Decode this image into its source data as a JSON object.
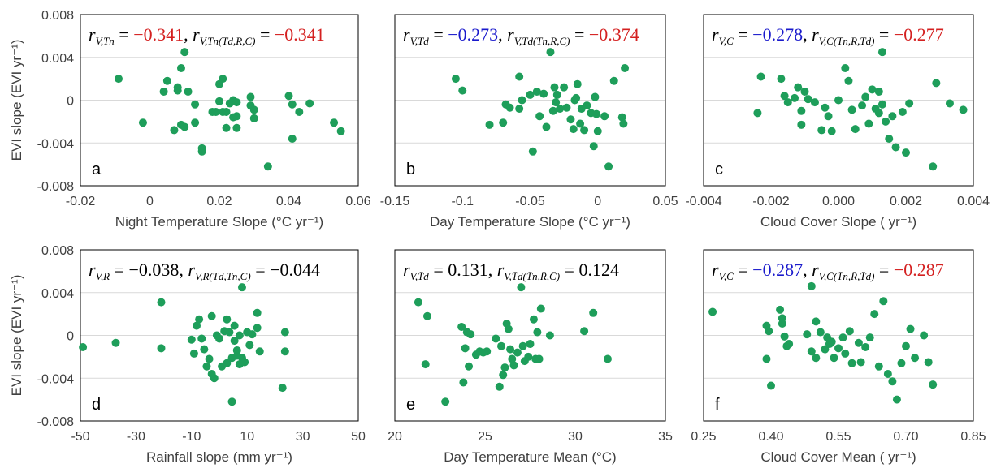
{
  "marker_color": "#1e9e5a",
  "colors": {
    "red": "#d42020",
    "blue": "#1a1acc",
    "black": "#000000"
  },
  "chart_data": [
    {
      "type": "scatter",
      "panel_label": "a",
      "xlabel": "Night Temperature Slope (°C yr⁻¹)",
      "ylabel": "EVI slope (EVI yr⁻¹)",
      "xlim": [
        -0.02,
        0.06
      ],
      "ylim": [
        -0.008,
        0.008
      ],
      "xticks": [
        "-0.02",
        "0",
        "0.02",
        "0.04",
        "0.06"
      ],
      "yticks": [
        "0.008",
        "0.004",
        "0",
        "-0.004",
        "-0.008"
      ],
      "annotation": [
        {
          "main": "r",
          "sub": "V,Tn",
          "eq": " = ",
          "val": "−0.341",
          "color": "red"
        },
        {
          "main": "r",
          "sub": "V,Tn(Td,R,C)",
          "eq": " = ",
          "val": "−0.341",
          "color": "red"
        }
      ],
      "x": [
        -0.009,
        -0.002,
        0.004,
        0.005,
        0.007,
        0.008,
        0.008,
        0.009,
        0.009,
        0.01,
        0.01,
        0.011,
        0.013,
        0.013,
        0.015,
        0.015,
        0.018,
        0.019,
        0.02,
        0.02,
        0.021,
        0.021,
        0.022,
        0.022,
        0.023,
        0.024,
        0.024,
        0.025,
        0.025,
        0.025,
        0.029,
        0.029,
        0.03,
        0.03,
        0.034,
        0.04,
        0.041,
        0.041,
        0.043,
        0.046,
        0.053,
        0.055
      ],
      "y": [
        0.002,
        -0.0021,
        0.0008,
        0.0018,
        -0.0028,
        0.0012,
        0.0009,
        -0.0023,
        0.003,
        0.0045,
        -0.0025,
        0.0008,
        -0.0021,
        -0.0004,
        -0.0048,
        -0.0045,
        -0.0011,
        -0.0011,
        -0.0001,
        0.0015,
        0.002,
        -0.0011,
        -0.0026,
        -0.0011,
        -0.0003,
        -0.0016,
        0.0,
        -0.0026,
        -0.0002,
        -0.0015,
        0.0003,
        -0.0005,
        -0.0009,
        -0.0017,
        -0.0062,
        0.0004,
        -0.0004,
        -0.0036,
        -0.0011,
        -0.0003,
        -0.0021,
        -0.0029
      ]
    },
    {
      "type": "scatter",
      "panel_label": "b",
      "xlabel": "Day Temperature Slope (°C yr⁻¹)",
      "ylabel": "",
      "xlim": [
        -0.15,
        0.05
      ],
      "ylim": [
        -0.008,
        0.008
      ],
      "xticks": [
        "-0.15",
        "-0.1",
        "-0.05",
        "0",
        "0.05"
      ],
      "yticks": [],
      "annotation": [
        {
          "main": "r",
          "sub": "V,Td",
          "eq": " = ",
          "val": "−0.273",
          "color": "blue"
        },
        {
          "main": "r",
          "sub": "V,Td(Tn,R,C)",
          "eq": " = ",
          "val": "−0.374",
          "color": "red"
        }
      ],
      "x": [
        -0.105,
        -0.1,
        -0.08,
        -0.07,
        -0.068,
        -0.065,
        -0.058,
        -0.058,
        -0.056,
        -0.05,
        -0.048,
        -0.045,
        -0.043,
        -0.04,
        -0.038,
        -0.035,
        -0.033,
        -0.032,
        -0.031,
        -0.03,
        -0.028,
        -0.025,
        -0.023,
        -0.02,
        -0.018,
        -0.017,
        -0.016,
        -0.015,
        -0.013,
        -0.012,
        -0.01,
        -0.008,
        -0.005,
        -0.003,
        -0.002,
        -0.001,
        0.0,
        0.005,
        0.008,
        0.012,
        0.018,
        0.019,
        0.02
      ],
      "y": [
        0.002,
        0.0009,
        -0.0023,
        -0.0021,
        -0.0004,
        -0.0007,
        0.0022,
        -0.0008,
        0.0,
        0.0005,
        -0.0048,
        0.0008,
        -0.0015,
        0.0006,
        -0.0025,
        0.0045,
        -0.001,
        0.0012,
        -0.0002,
        0.0005,
        -0.0008,
        0.0012,
        -0.0007,
        -0.0018,
        -0.0027,
        0.0,
        0.0002,
        0.0015,
        -0.0022,
        -0.0008,
        -0.0028,
        -0.0005,
        -0.0012,
        -0.0043,
        0.0003,
        -0.0013,
        -0.0029,
        -0.0015,
        -0.0062,
        0.0018,
        -0.0016,
        -0.0022,
        0.003
      ]
    },
    {
      "type": "scatter",
      "panel_label": "c",
      "xlabel": "Cloud Cover Slope ( yr⁻¹)",
      "ylabel": "",
      "xlim": [
        -0.004,
        0.004
      ],
      "ylim": [
        -0.008,
        0.008
      ],
      "xticks": [
        "-0.004",
        "-0.002",
        "0.000",
        "0.002",
        "0.004"
      ],
      "yticks": [],
      "annotation": [
        {
          "main": "r",
          "sub": "V,C",
          "eq": " = ",
          "val": "−0.278",
          "color": "blue"
        },
        {
          "main": "r",
          "sub": "V,C(Tn,R,Td)",
          "eq": " = ",
          "val": "−0.277",
          "color": "red"
        }
      ],
      "x": [
        -0.0024,
        -0.0023,
        -0.0017,
        -0.0016,
        -0.0015,
        -0.0013,
        -0.0012,
        -0.0011,
        -0.0011,
        -0.001,
        -0.0009,
        -0.0007,
        -0.0005,
        -0.0004,
        -0.0003,
        -0.0002,
        0.0,
        0.0002,
        0.0003,
        0.0004,
        0.0005,
        0.0007,
        0.0008,
        0.0009,
        0.001,
        0.0011,
        0.0012,
        0.0012,
        0.0013,
        0.0013,
        0.0014,
        0.0015,
        0.0016,
        0.0017,
        0.0019,
        0.002,
        0.0021,
        0.0028,
        0.0029,
        0.0033,
        0.0037
      ],
      "y": [
        -0.0012,
        0.0022,
        0.002,
        0.0004,
        -0.0002,
        0.0002,
        0.0012,
        -0.001,
        -0.0023,
        0.0008,
        0.0001,
        -0.0002,
        -0.0028,
        -0.0007,
        -0.0015,
        -0.0029,
        0.0,
        0.003,
        0.0018,
        -0.0009,
        -0.0027,
        -0.0005,
        0.0003,
        -0.0022,
        0.001,
        -0.0008,
        0.0008,
        -0.0012,
        -0.0004,
        0.0045,
        -0.002,
        -0.0036,
        -0.0015,
        -0.0044,
        -0.0011,
        -0.0049,
        -0.0003,
        -0.0062,
        0.0016,
        -0.0003,
        -0.0009
      ]
    },
    {
      "type": "scatter",
      "panel_label": "d",
      "xlabel": "Rainfall slope (mm yr⁻¹)",
      "ylabel": "EVI slope (EVI yr⁻¹)",
      "xlim": [
        -50,
        60
      ],
      "ylim": [
        -0.008,
        0.008
      ],
      "xticks": [
        "-50",
        "-30",
        "-10",
        "10",
        "30",
        "50"
      ],
      "yticks": [
        "0.008",
        "0.004",
        "0",
        "-0.004",
        "-0.008"
      ],
      "annotation": [
        {
          "main": "r",
          "sub": "V,R",
          "eq": " = ",
          "val": "−0.038",
          "color": "black"
        },
        {
          "main": "r",
          "sub": "V,R(Td,Tn,C)",
          "eq": " = ",
          "val": "−0.044",
          "color": "black"
        }
      ],
      "x": [
        -49,
        -36,
        -18,
        -18,
        -6,
        -5,
        -4,
        -3,
        -2,
        -1,
        0,
        1,
        2,
        2,
        3,
        4,
        5,
        6,
        7,
        8,
        8,
        9,
        10,
        10,
        11,
        11,
        12,
        12,
        13,
        13,
        14,
        14,
        15,
        16,
        17,
        18,
        20,
        20,
        21,
        30,
        31,
        31
      ],
      "y": [
        -0.0011,
        -0.0007,
        0.0031,
        -0.0012,
        -0.0004,
        -0.0017,
        0.0009,
        0.0015,
        -0.0003,
        -0.0013,
        -0.0029,
        -0.0022,
        0.0018,
        -0.0036,
        -0.004,
        0.0,
        -0.0003,
        -0.0029,
        0.0004,
        0.0015,
        -0.0026,
        0.0003,
        -0.0062,
        -0.0021,
        0.0009,
        -0.0005,
        -0.0014,
        -0.0019,
        -0.0027,
        0.0,
        0.0045,
        -0.0021,
        -0.0025,
        0.0003,
        -0.0009,
        0.0001,
        0.0021,
        0.0007,
        -0.0015,
        -0.0049,
        0.0003,
        -0.0015
      ]
    },
    {
      "type": "scatter",
      "panel_label": "e",
      "xlabel": "Day Temperature Mean (°C)",
      "ylabel": "",
      "xlim": [
        20,
        35
      ],
      "ylim": [
        -0.008,
        0.008
      ],
      "xticks": [
        "20",
        "25",
        "30",
        "35"
      ],
      "yticks": [],
      "annotation": [
        {
          "main": "r",
          "sub": "V,T̄d",
          "eq": " = ",
          "val": "0.131",
          "color": "black"
        },
        {
          "main": "r",
          "sub": "V,T̄d(T̄n,R̄,C̄)",
          "eq": " = ",
          "val": "0.124",
          "color": "black"
        }
      ],
      "x": [
        21.3,
        21.7,
        21.8,
        22.8,
        23.7,
        23.8,
        23.9,
        24.0,
        24.1,
        24.2,
        24.5,
        24.7,
        24.9,
        25.1,
        25.6,
        25.8,
        25.9,
        26.0,
        26.1,
        26.2,
        26.3,
        26.4,
        26.5,
        26.6,
        26.8,
        27.0,
        27.1,
        27.2,
        27.4,
        27.5,
        27.7,
        27.8,
        27.9,
        28.0,
        28.1,
        28.6,
        30.5,
        31.0,
        31.8
      ],
      "y": [
        0.0031,
        -0.0027,
        0.0018,
        -0.0062,
        0.0008,
        -0.0044,
        -0.0012,
        0.0003,
        -0.0029,
        0.0001,
        -0.0018,
        -0.0015,
        -0.0016,
        -0.0015,
        -0.0003,
        -0.0048,
        -0.001,
        -0.0037,
        -0.003,
        0.0011,
        0.0006,
        -0.0013,
        -0.0022,
        -0.0028,
        -0.0016,
        0.0045,
        -0.001,
        -0.0024,
        -0.002,
        -0.0008,
        0.0015,
        -0.0022,
        0.0003,
        -0.0022,
        0.0025,
        0.0,
        0.0004,
        0.0021,
        -0.0022
      ]
    },
    {
      "type": "scatter",
      "panel_label": "f",
      "xlabel": "Cloud Cover Mean ( yr⁻¹)",
      "ylabel": "",
      "xlim": [
        0.25,
        0.85
      ],
      "ylim": [
        -0.008,
        0.008
      ],
      "xticks": [
        "0.25",
        "0.40",
        "0.55",
        "0.70",
        "0.85"
      ],
      "yticks": [],
      "annotation": [
        {
          "main": "r",
          "sub": "V,C̄",
          "eq": " = ",
          "val": "−0.287",
          "color": "blue"
        },
        {
          "main": "r",
          "sub": "V,C̄(T̄n,R̄,T̄d)",
          "eq": " = ",
          "val": "−0.287",
          "color": "red"
        }
      ],
      "x": [
        0.27,
        0.39,
        0.39,
        0.395,
        0.4,
        0.42,
        0.425,
        0.425,
        0.43,
        0.435,
        0.44,
        0.48,
        0.49,
        0.49,
        0.5,
        0.5,
        0.51,
        0.52,
        0.525,
        0.53,
        0.535,
        0.54,
        0.55,
        0.56,
        0.565,
        0.575,
        0.58,
        0.595,
        0.6,
        0.61,
        0.62,
        0.63,
        0.64,
        0.65,
        0.66,
        0.67,
        0.68,
        0.69,
        0.7,
        0.71,
        0.72,
        0.74,
        0.75,
        0.76
      ],
      "y": [
        0.0022,
        -0.0022,
        0.0009,
        0.0004,
        -0.0047,
        0.0024,
        0.0016,
        0.0011,
        -0.0001,
        -0.001,
        -0.0008,
        0.0001,
        -0.0015,
        0.0046,
        -0.0021,
        0.0013,
        0.0003,
        -0.0013,
        -0.0002,
        -0.0008,
        -0.0006,
        -0.0021,
        -0.0012,
        -0.0002,
        -0.0017,
        0.0004,
        -0.0026,
        -0.0007,
        -0.0025,
        -0.0011,
        -0.0002,
        0.002,
        -0.0029,
        0.0032,
        -0.0036,
        -0.0043,
        -0.006,
        -0.0026,
        -0.001,
        0.0006,
        -0.0021,
        0.0,
        -0.0025,
        -0.0046
      ]
    }
  ]
}
